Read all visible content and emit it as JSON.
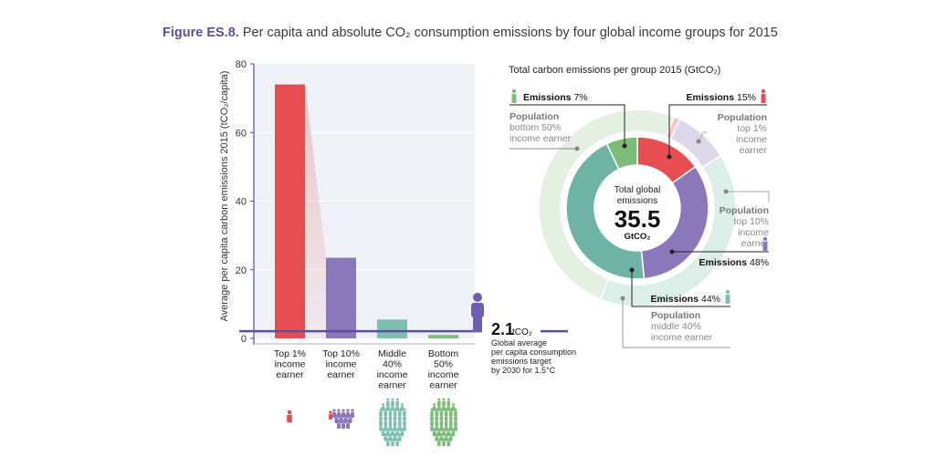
{
  "figure": {
    "label": "Figure ES.8.",
    "caption": "Per capita and absolute CO₂ consumption emissions by four global income groups for 2015"
  },
  "chart_data": [
    {
      "type": "bar",
      "title": "",
      "xlabel": "",
      "ylabel": "Average per capita carbon emissions 2015 (tCO₂/capita)",
      "ylim": [
        0,
        80
      ],
      "yticks": [
        0,
        20,
        40,
        60,
        80
      ],
      "grid": true,
      "categories": [
        "Top 1% income earner",
        "Top 10% income earner",
        "Middle 40% income earner",
        "Bottom 50% income earner"
      ],
      "category_lines": [
        [
          "Top 1%",
          "income",
          "earner"
        ],
        [
          "Top 10%",
          "income",
          "earner"
        ],
        [
          "Middle",
          "40%",
          "income",
          "earner"
        ],
        [
          "Bottom",
          "50%",
          "income",
          "earner"
        ]
      ],
      "values": [
        74,
        23.5,
        5.5,
        1.0
      ],
      "colors": [
        "#e84e51",
        "#8a78bb",
        "#7fbfb0",
        "#7dbb78"
      ],
      "reference_line": {
        "value": 2.1,
        "value_label": "2.1",
        "unit": "tCO₂",
        "description_lines": [
          "Global average",
          "per capita consumption",
          "emissions target",
          "by 2030 for 1.5°C"
        ],
        "color": "#5b4f9e"
      }
    },
    {
      "type": "pie",
      "title": "Total carbon emissions per group 2015 (GtCO₂)",
      "center_label_lines": [
        "Total global",
        "emissions"
      ],
      "center_value": "35.5",
      "center_unit": "GtCO₂",
      "inner_ring_emissions": [
        {
          "name": "Bottom 50%",
          "share": 7,
          "color": "#7dbb78"
        },
        {
          "name": "Top 1%",
          "share": 15,
          "color": "#e84e51"
        },
        {
          "name": "Top 10% (excl. top 1%)",
          "share": 33,
          "color": "#8a78bb"
        },
        {
          "name": "Middle 40%",
          "share": 44,
          "color": "#6fb3a5"
        }
      ],
      "outer_ring_population": [
        {
          "name": "Top 1%",
          "share": 1,
          "color": "#f6c7c6"
        },
        {
          "name": "Top 10% (excl. top 1%)",
          "share": 9,
          "color": "#dcd8ea"
        },
        {
          "name": "Middle 40%",
          "share": 40,
          "color": "#dceee8"
        },
        {
          "name": "Bottom 50%",
          "share": 50,
          "color": "#e4f1e2"
        }
      ],
      "annotations": [
        {
          "id": "bottom",
          "emissions_label": "Emissions",
          "emissions_value": "7%",
          "pop_label": "Population",
          "pop_lines": [
            "bottom 50%",
            "income earner"
          ]
        },
        {
          "id": "top1",
          "emissions_label": "Emissions",
          "emissions_value": "15%",
          "pop_label": "Population",
          "pop_lines": [
            "top 1%",
            "income",
            "earner"
          ]
        },
        {
          "id": "top10",
          "emissions_label": "Emissions",
          "emissions_value": "48%",
          "pop_label": "Population",
          "pop_lines": [
            "top 10%",
            "income",
            "earner"
          ]
        },
        {
          "id": "middle",
          "emissions_label": "Emissions",
          "emissions_value": "44%",
          "pop_label": "Population",
          "pop_lines": [
            "middle 40%",
            "income earner"
          ]
        }
      ]
    }
  ]
}
